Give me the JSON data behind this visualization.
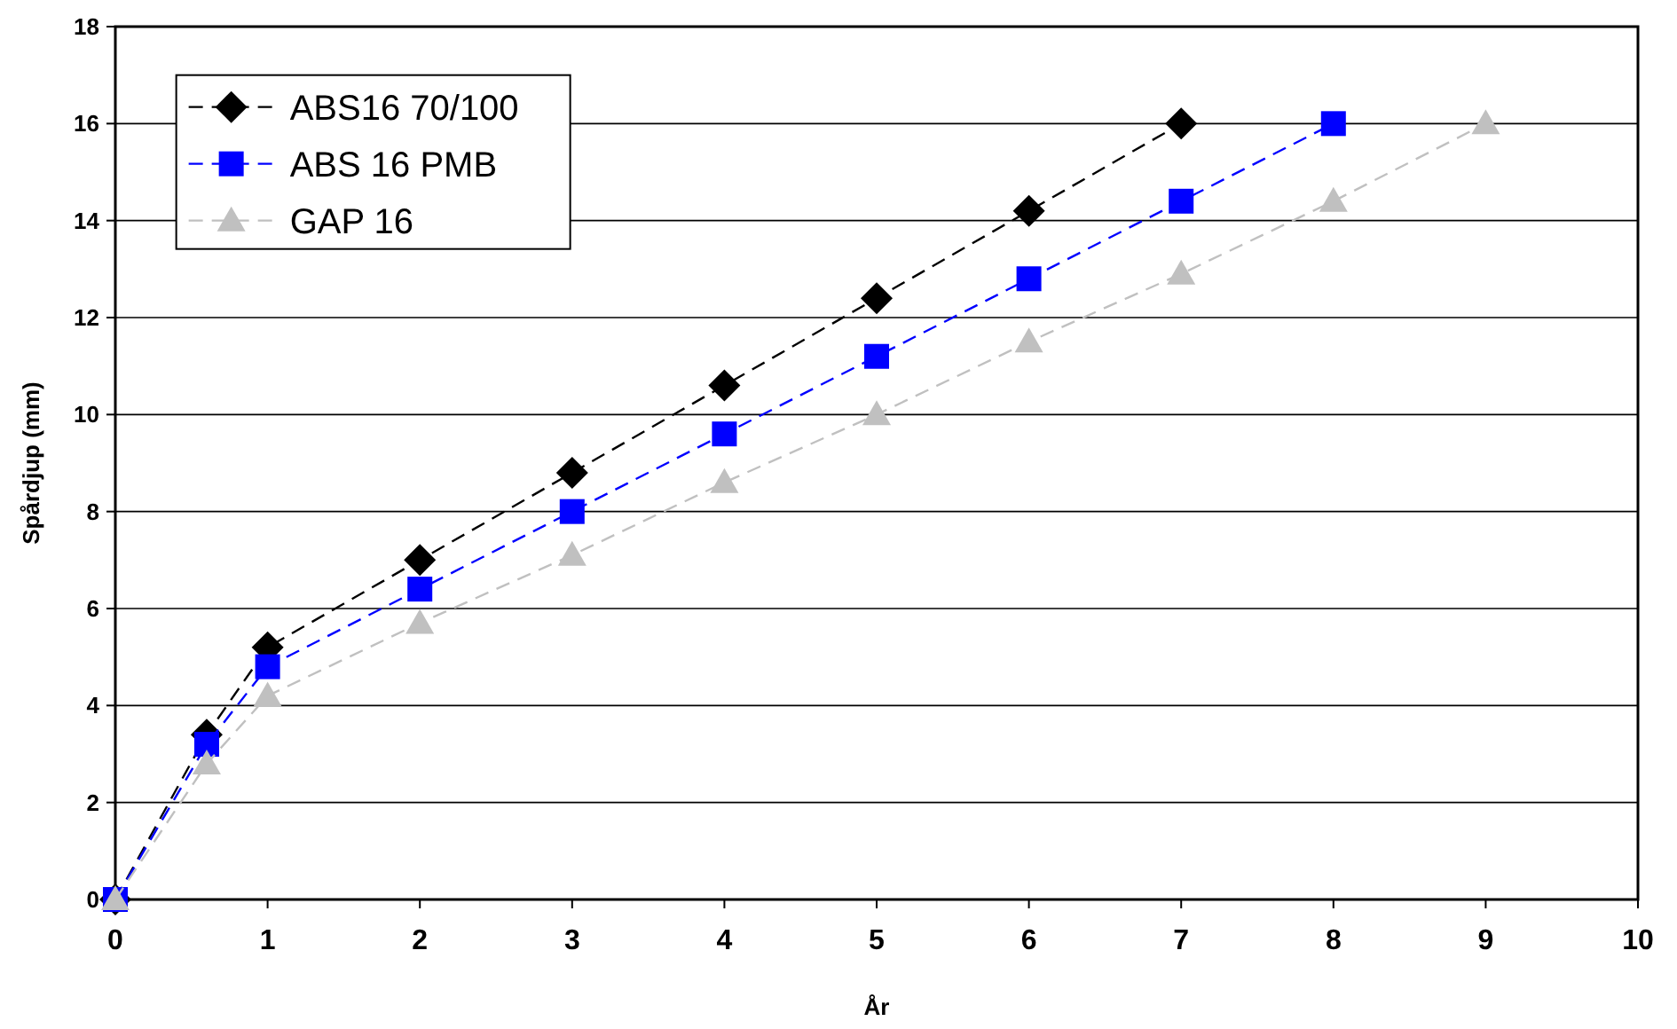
{
  "chart_data": {
    "type": "line",
    "xlabel": "År",
    "ylabel": "Spårdjup (mm)",
    "xlim": [
      0,
      10
    ],
    "xticks": [
      0,
      1,
      2,
      3,
      4,
      5,
      6,
      7,
      8,
      9,
      10
    ],
    "ylim": [
      0,
      18
    ],
    "yticks": [
      0,
      2,
      4,
      6,
      8,
      10,
      12,
      14,
      16,
      18
    ],
    "grid": "y",
    "legend": "top left",
    "series": [
      {
        "name": "ABS16 70/100",
        "color": "#000000",
        "marker": "diamond",
        "line_style": "dashed",
        "x": [
          0,
          0.6,
          1,
          2,
          3,
          4,
          5,
          6,
          7
        ],
        "values": [
          0,
          3.4,
          5.2,
          7.0,
          8.8,
          10.6,
          12.4,
          14.2,
          16
        ]
      },
      {
        "name": "ABS 16 PMB",
        "color": "#0000ff",
        "marker": "square",
        "line_style": "dashed",
        "x": [
          0,
          0.6,
          1,
          2,
          3,
          4,
          5,
          6,
          7,
          8
        ],
        "values": [
          0,
          3.2,
          4.8,
          6.4,
          8.0,
          9.6,
          11.2,
          12.8,
          14.4,
          16
        ]
      },
      {
        "name": "GAP 16",
        "color": "#c0c0c0",
        "marker": "triangle",
        "line_style": "dashed",
        "x": [
          0,
          0.6,
          1,
          2,
          3,
          4,
          5,
          6,
          7,
          8,
          9
        ],
        "values": [
          0,
          2.8,
          4.2,
          5.7,
          7.1,
          8.6,
          10.0,
          11.5,
          12.9,
          14.4,
          16
        ]
      }
    ]
  }
}
